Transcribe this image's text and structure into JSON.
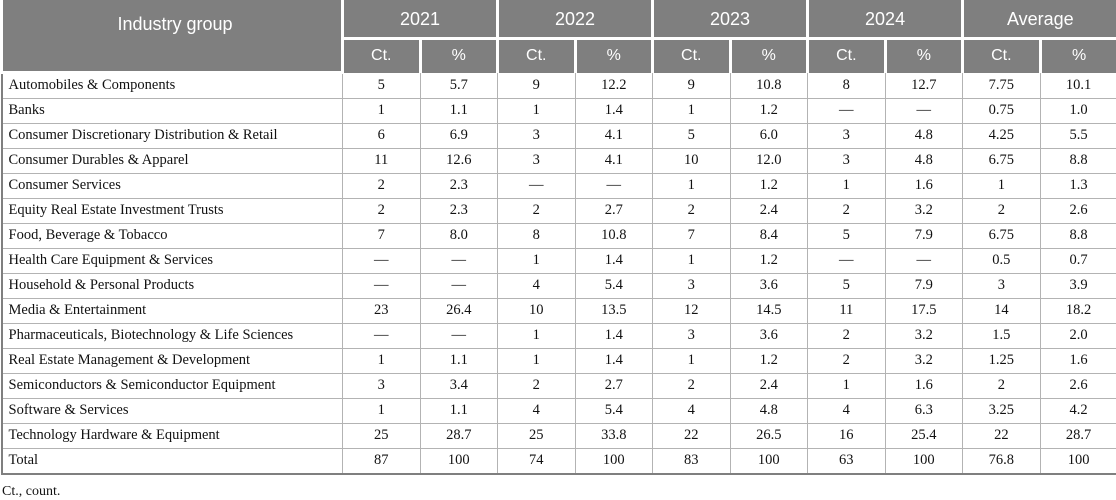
{
  "table": {
    "industry_group_label": "Industry group",
    "year_groups": [
      "2021",
      "2022",
      "2023",
      "2024",
      "Average"
    ],
    "ct_label": "Ct.",
    "pct_label": "%",
    "rows": [
      {
        "name": "Automobiles & Components",
        "values": [
          "5",
          "5.7",
          "9",
          "12.2",
          "9",
          "10.8",
          "8",
          "12.7",
          "7.75",
          "10.1"
        ]
      },
      {
        "name": "Banks",
        "values": [
          "1",
          "1.1",
          "1",
          "1.4",
          "1",
          "1.2",
          "—",
          "—",
          "0.75",
          "1.0"
        ]
      },
      {
        "name": "Consumer Discretionary Distribution & Retail",
        "values": [
          "6",
          "6.9",
          "3",
          "4.1",
          "5",
          "6.0",
          "3",
          "4.8",
          "4.25",
          "5.5"
        ]
      },
      {
        "name": "Consumer Durables & Apparel",
        "values": [
          "11",
          "12.6",
          "3",
          "4.1",
          "10",
          "12.0",
          "3",
          "4.8",
          "6.75",
          "8.8"
        ]
      },
      {
        "name": "Consumer Services",
        "values": [
          "2",
          "2.3",
          "—",
          "—",
          "1",
          "1.2",
          "1",
          "1.6",
          "1",
          "1.3"
        ]
      },
      {
        "name": "Equity Real Estate Investment Trusts",
        "values": [
          "2",
          "2.3",
          "2",
          "2.7",
          "2",
          "2.4",
          "2",
          "3.2",
          "2",
          "2.6"
        ]
      },
      {
        "name": "Food, Beverage & Tobacco",
        "values": [
          "7",
          "8.0",
          "8",
          "10.8",
          "7",
          "8.4",
          "5",
          "7.9",
          "6.75",
          "8.8"
        ]
      },
      {
        "name": "Health Care Equipment & Services",
        "values": [
          "—",
          "—",
          "1",
          "1.4",
          "1",
          "1.2",
          "—",
          "—",
          "0.5",
          "0.7"
        ]
      },
      {
        "name": "Household & Personal Products",
        "values": [
          "—",
          "—",
          "4",
          "5.4",
          "3",
          "3.6",
          "5",
          "7.9",
          "3",
          "3.9"
        ]
      },
      {
        "name": "Media & Entertainment",
        "values": [
          "23",
          "26.4",
          "10",
          "13.5",
          "12",
          "14.5",
          "11",
          "17.5",
          "14",
          "18.2"
        ]
      },
      {
        "name": "Pharmaceuticals, Biotechnology & Life Sciences",
        "values": [
          "—",
          "—",
          "1",
          "1.4",
          "3",
          "3.6",
          "2",
          "3.2",
          "1.5",
          "2.0"
        ]
      },
      {
        "name": "Real Estate Management & Development",
        "values": [
          "1",
          "1.1",
          "1",
          "1.4",
          "1",
          "1.2",
          "2",
          "3.2",
          "1.25",
          "1.6"
        ]
      },
      {
        "name": "Semiconductors & Semiconductor Equipment",
        "values": [
          "3",
          "3.4",
          "2",
          "2.7",
          "2",
          "2.4",
          "1",
          "1.6",
          "2",
          "2.6"
        ]
      },
      {
        "name": "Software & Services",
        "values": [
          "1",
          "1.1",
          "4",
          "5.4",
          "4",
          "4.8",
          "4",
          "6.3",
          "3.25",
          "4.2"
        ]
      },
      {
        "name": "Technology Hardware & Equipment",
        "values": [
          "25",
          "28.7",
          "25",
          "33.8",
          "22",
          "26.5",
          "16",
          "25.4",
          "22",
          "28.7"
        ]
      },
      {
        "name": "Total",
        "values": [
          "87",
          "100",
          "74",
          "100",
          "83",
          "100",
          "63",
          "100",
          "76.8",
          "100"
        ]
      }
    ]
  },
  "footnote": "Ct., count.",
  "colors": {
    "header_bg": "#7f7f7f",
    "header_text": "#ffffff",
    "inner_border": "#b3b3b3",
    "outer_border": "#7f7f7f",
    "body_text": "#111111"
  }
}
